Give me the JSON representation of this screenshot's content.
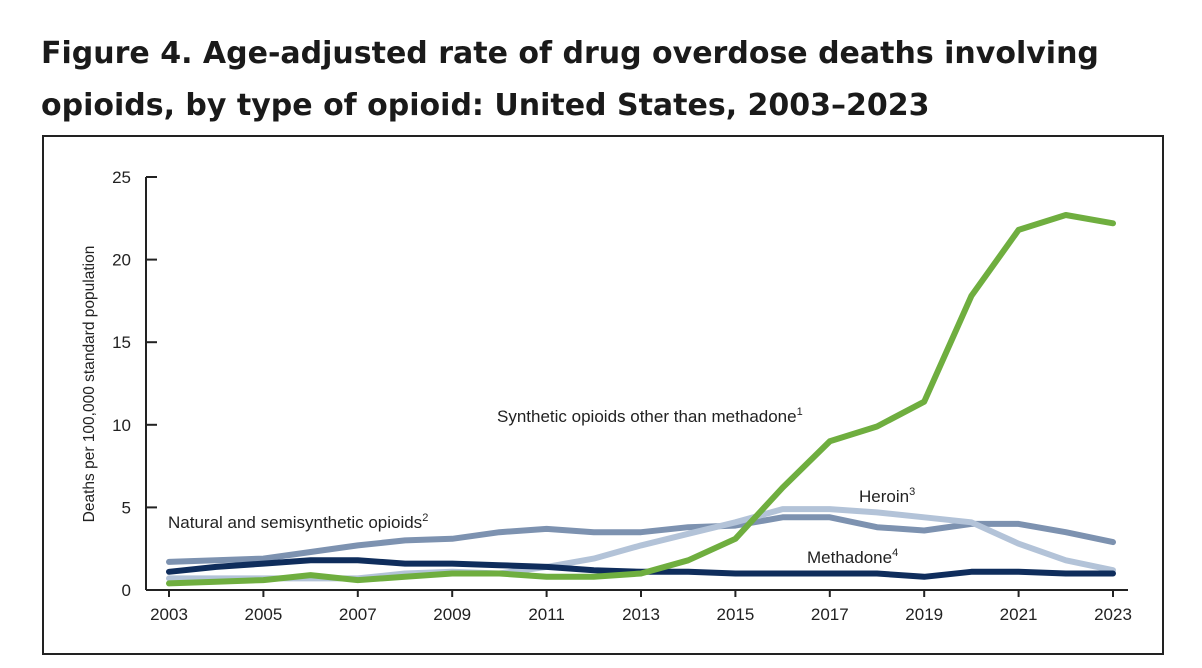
{
  "title_line1": "Figure 4. Age-adjusted rate of drug overdose deaths involving",
  "title_line2": "opioids, by type of opioid: United States, 2003–2023",
  "chart_data": {
    "type": "line",
    "title": "Figure 4. Age-adjusted rate of drug overdose deaths involving opioids, by type of opioid: United States, 2003–2023",
    "xlabel": "",
    "ylabel": "Deaths per 100,000 standard population",
    "x": [
      2003,
      2004,
      2005,
      2006,
      2007,
      2008,
      2009,
      2010,
      2011,
      2012,
      2013,
      2014,
      2015,
      2016,
      2017,
      2018,
      2019,
      2020,
      2021,
      2022,
      2023
    ],
    "xticks": [
      "2003",
      "2005",
      "2007",
      "2009",
      "2011",
      "2013",
      "2015",
      "2017",
      "2019",
      "2021",
      "2023"
    ],
    "yticks": [
      "0",
      "5",
      "10",
      "15",
      "20",
      "25"
    ],
    "ylim": [
      0,
      25
    ],
    "grid": false,
    "series": [
      {
        "name": "Natural and semisynthetic opioids",
        "label": "Natural and semisynthetic opioids",
        "sup": "2",
        "color": "#7d92b0",
        "values": [
          1.7,
          1.8,
          1.9,
          2.3,
          2.7,
          3.0,
          3.1,
          3.5,
          3.7,
          3.5,
          3.5,
          3.8,
          3.9,
          4.4,
          4.4,
          3.8,
          3.6,
          4.0,
          4.0,
          3.5,
          2.9
        ]
      },
      {
        "name": "Heroin",
        "label": "Heroin",
        "sup": "3",
        "color": "#b3c3d8",
        "values": [
          0.7,
          0.7,
          0.7,
          0.7,
          0.7,
          1.0,
          1.1,
          1.0,
          1.4,
          1.9,
          2.7,
          3.4,
          4.1,
          4.9,
          4.9,
          4.7,
          4.4,
          4.1,
          2.8,
          1.8,
          1.2
        ]
      },
      {
        "name": "Methadone",
        "label": "Methadone",
        "sup": "4",
        "color": "#0f2d5c",
        "values": [
          1.1,
          1.4,
          1.6,
          1.8,
          1.8,
          1.6,
          1.6,
          1.5,
          1.4,
          1.2,
          1.1,
          1.1,
          1.0,
          1.0,
          1.0,
          1.0,
          0.8,
          1.1,
          1.1,
          1.0,
          1.0
        ]
      },
      {
        "name": "Synthetic opioids other than methadone",
        "label": "Synthetic opioids other than methadone",
        "sup": "1",
        "color": "#6fae3f",
        "values": [
          0.4,
          0.5,
          0.6,
          0.9,
          0.6,
          0.8,
          1.0,
          1.0,
          0.8,
          0.8,
          1.0,
          1.8,
          3.1,
          6.2,
          9.0,
          9.9,
          11.4,
          17.8,
          21.8,
          22.7,
          22.2
        ]
      }
    ]
  }
}
